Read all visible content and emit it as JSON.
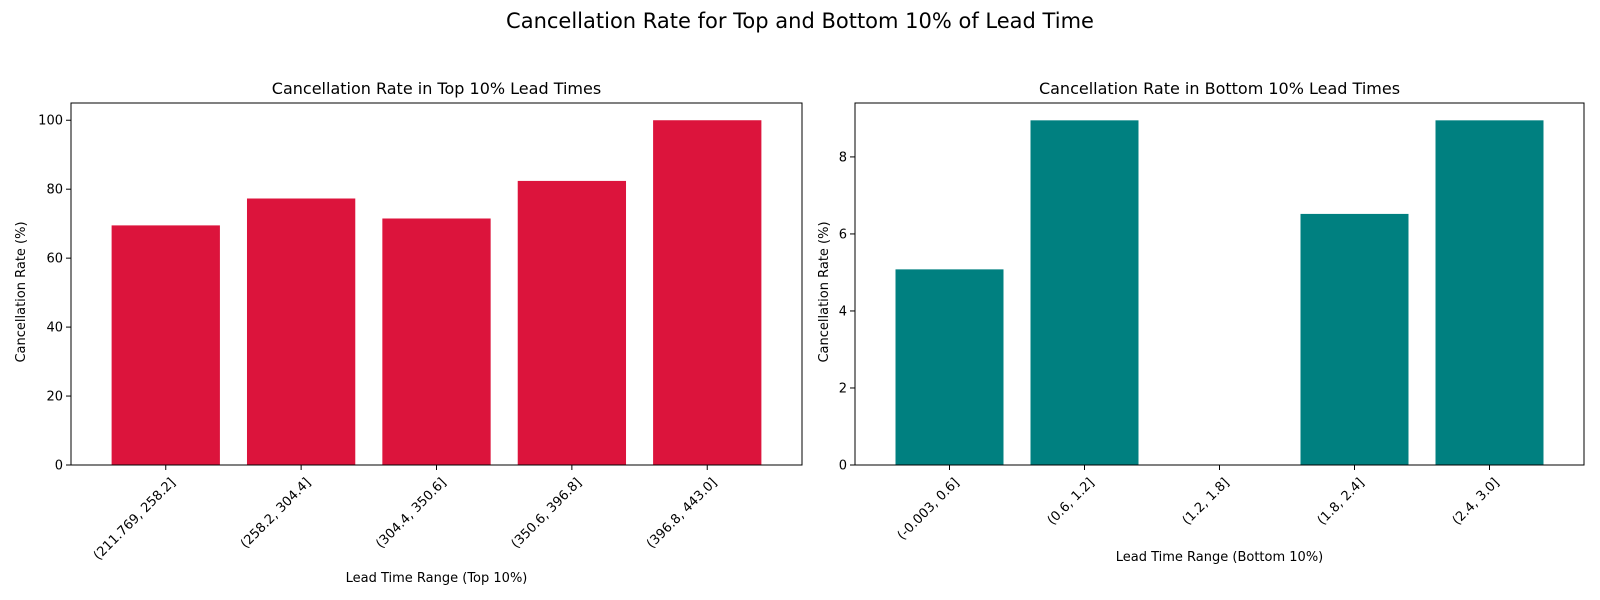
{
  "figure": {
    "suptitle": "Cancellation Rate for Top and Bottom 10% of Lead Time"
  },
  "chart_data": [
    {
      "type": "bar",
      "title": "Cancellation Rate in Top 10% Lead Times",
      "xlabel": "Lead Time Range (Top 10%)",
      "ylabel": "Cancellation Rate (%)",
      "categories": [
        "(211.769, 258.2]",
        "(258.2, 304.4]",
        "(304.4, 350.6]",
        "(350.6, 396.8]",
        "(396.8, 443.0]"
      ],
      "values": [
        69.5,
        77.3,
        71.5,
        82.4,
        100.0
      ],
      "ylim": [
        0,
        105
      ],
      "yticks": [
        0,
        20,
        40,
        60,
        80,
        100
      ],
      "ytick_labels": [
        "0",
        "20",
        "40",
        "60",
        "80",
        "100"
      ],
      "color": "#DC143C",
      "grid": false
    },
    {
      "type": "bar",
      "title": "Cancellation Rate in Bottom 10% Lead Times",
      "xlabel": "Lead Time Range (Bottom 10%)",
      "ylabel": "Cancellation Rate (%)",
      "categories": [
        "(-0.003, 0.6]",
        "(0.6, 1.2]",
        "(1.2, 1.8]",
        "(1.8, 2.4]",
        "(2.4, 3.0]"
      ],
      "values": [
        5.08,
        8.95,
        0.0,
        6.52,
        8.95
      ],
      "ylim": [
        0,
        9.4
      ],
      "yticks": [
        0,
        2,
        4,
        6,
        8
      ],
      "ytick_labels": [
        "0",
        "2",
        "4",
        "6",
        "8"
      ],
      "color": "#008080",
      "grid": false
    }
  ]
}
